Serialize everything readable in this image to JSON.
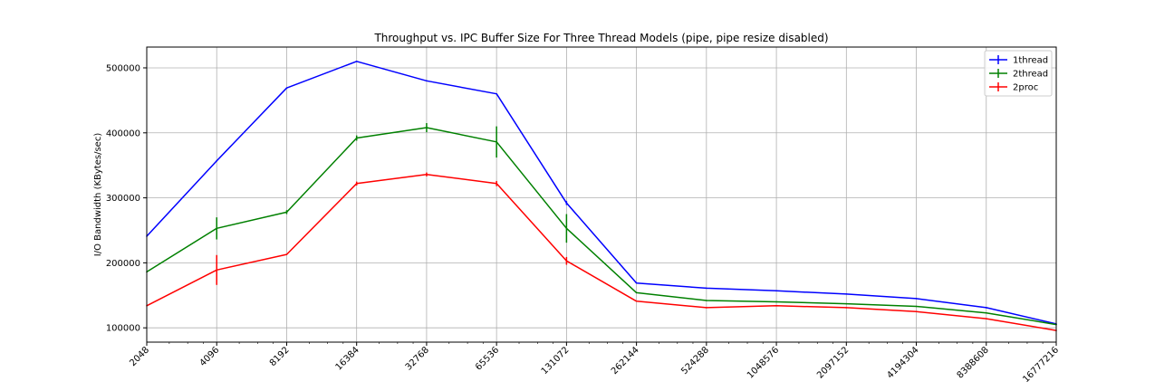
{
  "chart_data": {
    "type": "line",
    "title": "Throughput vs. IPC Buffer Size For Three Thread Models (pipe, pipe resize disabled)",
    "xlabel": "",
    "ylabel": "I/O Bandwidth (KBytes/sec)",
    "x_scale": "log2",
    "x": [
      2048,
      4096,
      8192,
      16384,
      32768,
      65536,
      131072,
      262144,
      524288,
      1048576,
      2097152,
      4194304,
      8388608,
      16777216
    ],
    "x_tick_labels": [
      "2048",
      "4096",
      "8192",
      "16384",
      "32768",
      "65536",
      "131072",
      "262144",
      "524288",
      "1048576",
      "2097152",
      "4194304",
      "8388608",
      "16777216"
    ],
    "ylim": [
      78000,
      532000
    ],
    "y_ticks": [
      100000,
      200000,
      300000,
      400000,
      500000
    ],
    "y_tick_labels": [
      "100000",
      "200000",
      "300000",
      "400000",
      "500000"
    ],
    "grid": true,
    "legend_position": "top-right",
    "series": [
      {
        "name": "1thread",
        "color": "#0000ff",
        "values": [
          241000,
          357000,
          469000,
          510000,
          480000,
          460000,
          292000,
          169000,
          161000,
          157000,
          152000,
          145000,
          131000,
          106000
        ],
        "errors": [
          0,
          0,
          0,
          0,
          0,
          0,
          3000,
          0,
          0,
          0,
          0,
          0,
          0,
          0
        ]
      },
      {
        "name": "2thread",
        "color": "#008000",
        "values": [
          186000,
          253000,
          278000,
          392000,
          408000,
          386000,
          253000,
          154000,
          142000,
          140000,
          137000,
          133000,
          123000,
          105000
        ],
        "errors": [
          0,
          17000,
          3000,
          4000,
          7000,
          24000,
          22000,
          0,
          0,
          0,
          0,
          0,
          0,
          0
        ]
      },
      {
        "name": "2proc",
        "color": "#ff0000",
        "values": [
          134000,
          189000,
          213000,
          322000,
          336000,
          322000,
          203000,
          141000,
          131000,
          134000,
          131000,
          125000,
          114000,
          96000
        ],
        "errors": [
          0,
          23000,
          0,
          3000,
          3000,
          4000,
          6000,
          0,
          0,
          0,
          0,
          0,
          0,
          0
        ]
      }
    ]
  }
}
